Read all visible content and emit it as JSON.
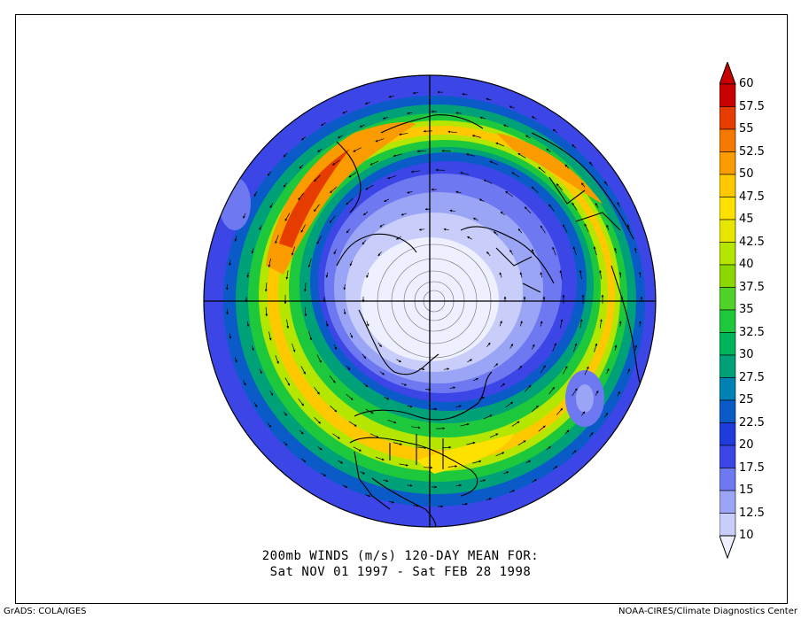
{
  "caption": {
    "line1": "200mb WINDS (m/s)   120-DAY MEAN FOR:",
    "line2": "Sat NOV 01 1997 - Sat FEB 28 1998"
  },
  "footer": {
    "left": "GrADS: COLA/IGES",
    "right": "NOAA-CIRES/Climate Diagnostics Center"
  },
  "colorbar": {
    "labels": [
      "60",
      "57.5",
      "55",
      "52.5",
      "50",
      "47.5",
      "45",
      "42.5",
      "40",
      "37.5",
      "35",
      "32.5",
      "30",
      "27.5",
      "25",
      "22.5",
      "20",
      "17.5",
      "15",
      "12.5",
      "10"
    ],
    "colors": [
      "#c80000",
      "#e63c00",
      "#f57800",
      "#fa9b00",
      "#ffc800",
      "#ffe100",
      "#e6e600",
      "#b4e600",
      "#8cd700",
      "#50d228",
      "#1ec83c",
      "#00b45a",
      "#00a078",
      "#0082b4",
      "#0a5ac8",
      "#1e3cdc",
      "#3c46e6",
      "#6e78f0",
      "#9ba5f5",
      "#c8cdfa",
      "#eef0ff"
    ]
  }
}
